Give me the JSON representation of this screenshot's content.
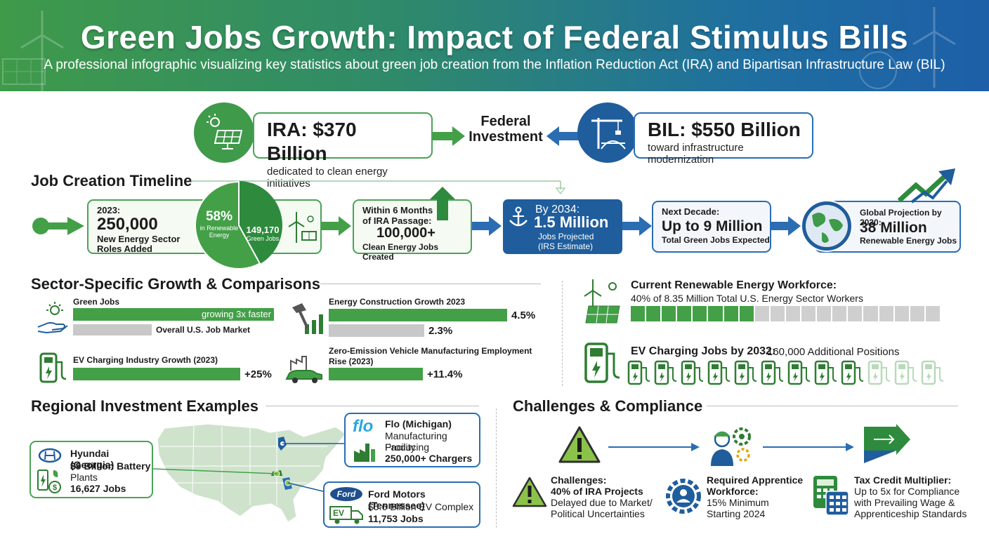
{
  "header": {
    "title": "Green Jobs Growth: Impact of Federal Stimulus Bills",
    "subtitle": "A professional infographic visualizing key statistics about green job creation from the Inflation Reduction Act (IRA) and Bipartisan Infrastructure Law (BIL)"
  },
  "funding": {
    "ira_title": "IRA: $370 Billion",
    "ira_sub": "dedicated to clean energy initiatives",
    "center_line1": "Federal",
    "center_line2": "Investment",
    "bil_title": "BIL: $550 Billion",
    "bil_sub": "toward infrastructure modernization"
  },
  "timeline": {
    "section_title": "Job Creation Timeline",
    "y2023_label": "2023:",
    "y2023_value": "250,000",
    "y2023_desc1": "New Energy Sector",
    "y2023_desc2": "Roles Added",
    "pie_pct": "58%",
    "pie_label1": "in Renewable",
    "pie_label2": "Energy",
    "pie_value": "149,170",
    "pie_value_label": "Green Jobs",
    "six_months_label1": "Within 6 Months",
    "six_months_label2": "of IRA Passage:",
    "six_months_value": "100,000+",
    "six_months_desc": "Clean Energy Jobs Created",
    "by2034_label": "By 2034:",
    "by2034_value": "1.5 Million",
    "by2034_desc1": "Jobs Projected",
    "by2034_desc2": "(IRS Estimate)",
    "decade_label": "Next Decade:",
    "decade_value": "Up to 9 Million",
    "decade_desc": "Total Green Jobs Expected",
    "global_label": "Global Projection by 2030:",
    "global_value": "38 Million",
    "global_desc": "Renewable Energy Jobs"
  },
  "sectors": {
    "section_title": "Sector-Specific Growth & Comparisons",
    "green_jobs_label": "Green Jobs",
    "green_jobs_bar_text": "growing 3x faster",
    "us_market_label": "Overall U.S. Job Market",
    "energy_construction_label": "Energy Construction Growth 2023",
    "energy_construction_green": "4.5%",
    "energy_construction_grey": "2.3%",
    "ev_charging_label": "EV Charging Industry Growth (2023)",
    "ev_charging_value": "+25%",
    "zev_label1": "Zero-Emission Vehicle Manufacturing Employment",
    "zev_label2": "Rise (2023)",
    "zev_value": "+11.4%"
  },
  "workforce": {
    "title": "Current Renewable Energy Workforce:",
    "desc": "40% of 8.35 Million Total U.S. Energy Sector Workers",
    "share": 0.4,
    "ev_title": "EV Charging Jobs by 2032:",
    "ev_desc": "160,000 Additional Positions"
  },
  "regional": {
    "section_title": "Regional Investment Examples",
    "hyundai_title": "Hyundai (Georgia)",
    "hyundai_l1": "$9 Billion Battery",
    "hyundai_l2": "Plants",
    "hyundai_l3": "16,627 Jobs",
    "flo_logo": "flo",
    "flo_title": "Flo (Michigan)",
    "flo_l1": "Manufacturing Facility",
    "flo_l2": "Producing",
    "flo_l3": "250,000+ Chargers",
    "ford_logo": "Ford",
    "ford_title": "Ford Motors (Tennessee)",
    "ford_l1": "$5.6 Billion EV Complex",
    "ford_l2": "11,753 Jobs",
    "ev_badge": "EV"
  },
  "challenges": {
    "section_title": "Challenges & Compliance",
    "c1_title": "Challenges:",
    "c1_l1": "40% of IRA Projects",
    "c1_l2": "Delayed due to Market/",
    "c1_l3": "Political Uncertainties",
    "c2_title1": "Required Apprentice",
    "c2_title2": "Workforce:",
    "c2_l1": "15% Minimum",
    "c2_l2": "Starting 2024",
    "c3_title": "Tax Credit Multiplier:",
    "c3_l1": "Up to 5x for Compliance",
    "c3_l2": "with Prevailing Wage &",
    "c3_l3": "Apprenticeship Standards"
  },
  "colors": {
    "green": "#43a047",
    "blue": "#2a6db3",
    "darkblue": "#1f5d9c"
  }
}
